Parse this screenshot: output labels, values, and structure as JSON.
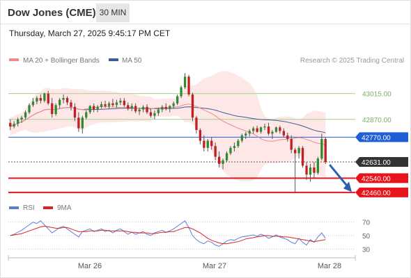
{
  "header": {
    "title": "Dow Jones (CME)",
    "interval": "30 MIN",
    "timestamp": "Thursday, March 27, 2025 9:45:17 PM CET"
  },
  "legend": {
    "ma20_label": "MA 20 + Bollinger Bands",
    "ma50_label": "MA 50",
    "copyright": "Research © 2025 Trading Central",
    "ma20_color": "#f08a8a",
    "ma50_color": "#3d5a99",
    "band_color": "#fde3e3"
  },
  "rsi_legend": {
    "rsi_label": "RSI",
    "ma_label": "9MA",
    "rsi_color": "#5b7fd9",
    "ma_color": "#e02020"
  },
  "chart_data": [
    {
      "type": "candlestick",
      "x_tick_labels": [
        "Mar 26",
        "Mar 27",
        "Mar 28"
      ],
      "y_range": [
        42440,
        43150
      ],
      "levels": [
        {
          "value": 43015.0,
          "label": "43015.00",
          "style": "resistance",
          "color": "#a8d08d"
        },
        {
          "value": 42870.0,
          "label": "42870.00",
          "style": "resistance",
          "color": "#a8d08d"
        },
        {
          "value": 42770.0,
          "label": "42770.00",
          "style": "pivot",
          "color": "#1f5fd6"
        },
        {
          "value": 42631.0,
          "label": "42631.00",
          "style": "last",
          "color": "#333333"
        },
        {
          "value": 42540.0,
          "label": "42540.00",
          "style": "support",
          "color": "#e8141b"
        },
        {
          "value": 42460.0,
          "label": "42460.00",
          "style": "support",
          "color": "#e8141b"
        }
      ],
      "bull_color": "#2e8b2e",
      "bear_color": "#c41e1e",
      "forecast_arrow": "down",
      "forecast_color": "#2a5fb0",
      "candles": [
        [
          42850,
          42870,
          42810,
          42830
        ],
        [
          42830,
          42860,
          42820,
          42845
        ],
        [
          42845,
          42880,
          42830,
          42870
        ],
        [
          42870,
          42890,
          42850,
          42880
        ],
        [
          42880,
          42920,
          42870,
          42910
        ],
        [
          42910,
          42960,
          42900,
          42950
        ],
        [
          42950,
          42990,
          42940,
          42970
        ],
        [
          42970,
          43000,
          42955,
          42990
        ],
        [
          42990,
          43010,
          42960,
          42975
        ],
        [
          42975,
          43020,
          42965,
          43015
        ],
        [
          43015,
          43030,
          42950,
          42960
        ],
        [
          42960,
          42990,
          42880,
          42900
        ],
        [
          42900,
          42960,
          42890,
          42950
        ],
        [
          42950,
          42990,
          42930,
          42980
        ],
        [
          42980,
          43010,
          42960,
          42990
        ],
        [
          42990,
          43000,
          42950,
          42965
        ],
        [
          42965,
          42980,
          42920,
          42940
        ],
        [
          42940,
          42960,
          42860,
          42880
        ],
        [
          42880,
          42910,
          42800,
          42820
        ],
        [
          42820,
          42890,
          42790,
          42880
        ],
        [
          42880,
          42920,
          42870,
          42910
        ],
        [
          42910,
          42950,
          42900,
          42945
        ],
        [
          42945,
          42960,
          42910,
          42925
        ],
        [
          42925,
          42950,
          42910,
          42940
        ],
        [
          42940,
          42970,
          42930,
          42955
        ],
        [
          42955,
          42975,
          42935,
          42945
        ],
        [
          42945,
          42970,
          42930,
          42960
        ],
        [
          42960,
          42985,
          42940,
          42950
        ],
        [
          42950,
          42980,
          42935,
          42965
        ],
        [
          42965,
          42990,
          42950,
          42975
        ],
        [
          42975,
          42990,
          42940,
          42950
        ],
        [
          42950,
          42965,
          42920,
          42930
        ],
        [
          42930,
          42960,
          42915,
          42945
        ],
        [
          42945,
          42960,
          42905,
          42915
        ],
        [
          42915,
          42935,
          42895,
          42925
        ],
        [
          42925,
          42950,
          42910,
          42940
        ],
        [
          42940,
          42955,
          42900,
          42910
        ],
        [
          42910,
          42930,
          42880,
          42890
        ],
        [
          42890,
          42920,
          42870,
          42905
        ],
        [
          42905,
          42935,
          42890,
          42925
        ],
        [
          42925,
          42950,
          42910,
          42940
        ],
        [
          42940,
          42960,
          42920,
          42930
        ],
        [
          42930,
          42950,
          42910,
          42945
        ],
        [
          42945,
          42970,
          42930,
          42960
        ],
        [
          42960,
          43010,
          42950,
          43000
        ],
        [
          43000,
          43060,
          42990,
          43050
        ],
        [
          43050,
          43130,
          43040,
          43110
        ],
        [
          43110,
          43120,
          43000,
          43010
        ],
        [
          43010,
          43020,
          42860,
          42880
        ],
        [
          42880,
          42890,
          42790,
          42810
        ],
        [
          42810,
          42820,
          42730,
          42750
        ],
        [
          42750,
          42780,
          42690,
          42710
        ],
        [
          42710,
          42760,
          42690,
          42750
        ],
        [
          42750,
          42770,
          42700,
          42720
        ],
        [
          42720,
          42740,
          42640,
          42660
        ],
        [
          42660,
          42690,
          42600,
          42620
        ],
        [
          42620,
          42650,
          42590,
          42640
        ],
        [
          42640,
          42690,
          42630,
          42680
        ],
        [
          42680,
          42720,
          42670,
          42710
        ],
        [
          42710,
          42740,
          42690,
          42720
        ],
        [
          42720,
          42760,
          42710,
          42750
        ],
        [
          42750,
          42790,
          42740,
          42780
        ],
        [
          42780,
          42800,
          42760,
          42790
        ],
        [
          42790,
          42815,
          42775,
          42805
        ],
        [
          42805,
          42830,
          42790,
          42820
        ],
        [
          42820,
          42835,
          42795,
          42800
        ],
        [
          42800,
          42830,
          42790,
          42825
        ],
        [
          42825,
          42845,
          42810,
          42830
        ],
        [
          42830,
          42850,
          42780,
          42790
        ],
        [
          42790,
          42810,
          42760,
          42800
        ],
        [
          42800,
          42830,
          42795,
          42825
        ],
        [
          42825,
          42835,
          42790,
          42805
        ],
        [
          42805,
          42820,
          42770,
          42780
        ],
        [
          42780,
          42795,
          42745,
          42760
        ],
        [
          42760,
          42780,
          42680,
          42700
        ],
        [
          42700,
          42710,
          42460,
          42680
        ],
        [
          42680,
          42720,
          42650,
          42710
        ],
        [
          42710,
          42720,
          42600,
          42610
        ],
        [
          42610,
          42630,
          42530,
          42560
        ],
        [
          42560,
          42620,
          42520,
          42600
        ],
        [
          42600,
          42630,
          42540,
          42570
        ],
        [
          42570,
          42660,
          42560,
          42650
        ],
        [
          42650,
          42790,
          42640,
          42760
        ],
        [
          42760,
          42770,
          42620,
          42631
        ]
      ]
    },
    {
      "type": "line",
      "title": "RSI",
      "y_ticks": [
        70,
        50,
        30
      ],
      "y_range": [
        20,
        80
      ],
      "series": [
        {
          "name": "RSI",
          "values": [
            50,
            52,
            55,
            58,
            62,
            66,
            70,
            68,
            72,
            66,
            60,
            54,
            58,
            62,
            64,
            60,
            56,
            52,
            48,
            56,
            58,
            60,
            56,
            58,
            60,
            56,
            58,
            54,
            58,
            60,
            56,
            52,
            55,
            52,
            54,
            56,
            52,
            50,
            54,
            56,
            58,
            55,
            57,
            60,
            64,
            68,
            72,
            62,
            50,
            44,
            40,
            38,
            42,
            40,
            36,
            34,
            38,
            42,
            44,
            43,
            46,
            48,
            49,
            50,
            51,
            49,
            52,
            50,
            46,
            48,
            51,
            48,
            46,
            44,
            40,
            38,
            46,
            40,
            36,
            44,
            40,
            48,
            54,
            46
          ]
        },
        {
          "name": "9MA",
          "values": [
            50,
            51,
            52,
            53,
            55,
            57,
            59,
            61,
            63,
            64,
            63,
            62,
            61,
            61,
            62,
            62,
            60,
            58,
            56,
            56,
            56,
            57,
            57,
            57,
            58,
            58,
            57,
            57,
            57,
            57,
            57,
            56,
            55,
            55,
            54,
            54,
            54,
            53,
            53,
            54,
            55,
            55,
            56,
            56,
            58,
            60,
            62,
            62,
            60,
            57,
            54,
            50,
            46,
            43,
            41,
            39,
            38,
            38,
            39,
            40,
            41,
            43,
            45,
            46,
            47,
            48,
            49,
            50,
            50,
            49,
            49,
            49,
            48,
            48,
            47,
            46,
            45,
            44,
            43,
            42,
            41,
            42,
            43,
            44
          ]
        }
      ]
    }
  ]
}
